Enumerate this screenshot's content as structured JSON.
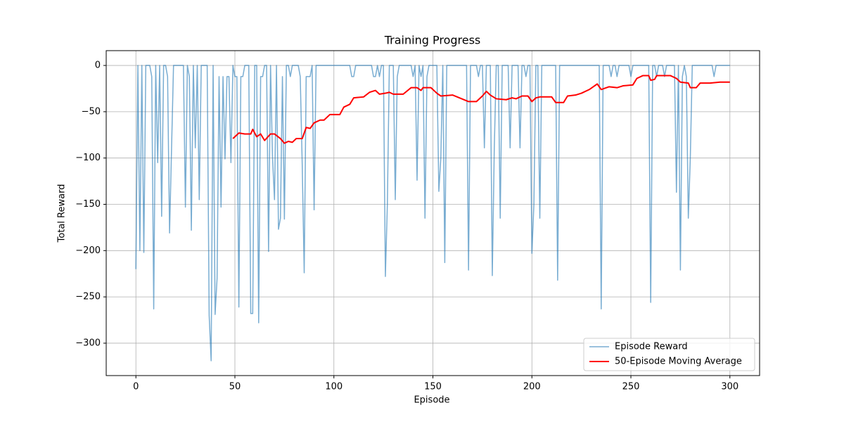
{
  "chart_data": {
    "type": "line",
    "title": "Training Progress",
    "x_label": "Episode",
    "y_label": "Total Reward",
    "x": [
      0,
      1,
      2,
      3,
      4,
      5,
      6,
      7,
      8,
      9,
      10,
      11,
      12,
      13,
      14,
      15,
      16,
      17,
      18,
      19,
      20,
      21,
      22,
      23,
      24,
      25,
      26,
      27,
      28,
      29,
      30,
      31,
      32,
      33,
      34,
      35,
      36,
      37,
      38,
      39,
      40,
      41,
      42,
      43,
      44,
      45,
      46,
      47,
      48,
      49,
      50,
      51,
      52,
      53,
      54,
      55,
      56,
      57,
      58,
      59,
      60,
      61,
      62,
      63,
      64,
      65,
      66,
      67,
      68,
      69,
      70,
      71,
      72,
      73,
      74,
      75,
      76,
      77,
      78,
      79,
      80,
      81,
      82,
      83,
      84,
      85,
      86,
      87,
      88,
      89,
      90,
      91,
      92,
      93,
      94,
      95,
      96,
      97,
      98,
      99,
      100,
      101,
      102,
      103,
      104,
      105,
      106,
      107,
      108,
      109,
      110,
      111,
      112,
      113,
      114,
      115,
      116,
      117,
      118,
      119,
      120,
      121,
      122,
      123,
      124,
      125,
      126,
      127,
      128,
      129,
      130,
      131,
      132,
      133,
      134,
      135,
      136,
      137,
      138,
      139,
      140,
      141,
      142,
      143,
      144,
      145,
      146,
      147,
      148,
      149,
      150,
      151,
      152,
      153,
      154,
      155,
      156,
      157,
      158,
      159,
      160,
      161,
      162,
      163,
      164,
      165,
      166,
      167,
      168,
      169,
      170,
      171,
      172,
      173,
      174,
      175,
      176,
      177,
      178,
      179,
      180,
      181,
      182,
      183,
      184,
      185,
      186,
      187,
      188,
      189,
      190,
      191,
      192,
      193,
      194,
      195,
      196,
      197,
      198,
      199,
      200,
      201,
      202,
      203,
      204,
      205,
      206,
      207,
      208,
      209,
      210,
      211,
      212,
      213,
      214,
      215,
      216,
      217,
      218,
      219,
      220,
      221,
      222,
      223,
      224,
      225,
      226,
      227,
      228,
      229,
      230,
      231,
      232,
      233,
      234,
      235,
      236,
      237,
      238,
      239,
      240,
      241,
      242,
      243,
      244,
      245,
      246,
      247,
      248,
      249,
      250,
      251,
      252,
      253,
      254,
      255,
      256,
      257,
      258,
      259,
      260,
      261,
      262,
      263,
      264,
      265,
      266,
      267,
      268,
      269,
      270,
      271,
      272,
      273,
      274,
      275,
      276,
      277,
      278,
      279,
      280,
      281,
      282,
      283,
      284,
      285,
      286,
      287,
      288,
      289,
      290,
      291,
      292,
      293,
      294,
      295,
      296,
      297,
      298,
      299,
      300
    ],
    "series": [
      {
        "name": "Episode Reward",
        "color": "#1f77b4",
        "alpha": 0.6,
        "linewidth": 1.5,
        "values": [
          -220,
          0,
          -200,
          0,
          -202,
          0,
          0,
          0,
          -12,
          -263,
          0,
          -105,
          0,
          -163,
          0,
          0,
          -12,
          -181,
          -90,
          0,
          0,
          0,
          0,
          0,
          0,
          -153,
          0,
          -12,
          -178,
          0,
          -89,
          0,
          -145,
          0,
          0,
          0,
          0,
          -270,
          -319,
          0,
          -269,
          -230,
          -12,
          -153,
          -12,
          -101,
          -12,
          -12,
          -105,
          0,
          -12,
          -12,
          -261,
          -12,
          -12,
          0,
          0,
          0,
          -268,
          -268,
          0,
          0,
          -278,
          -12,
          -12,
          0,
          0,
          -201,
          0,
          -100,
          -145,
          0,
          -177,
          -165,
          -12,
          -166,
          0,
          0,
          -12,
          0,
          0,
          0,
          0,
          -12,
          -107,
          -224,
          -12,
          -12,
          -12,
          0,
          -156,
          0,
          0,
          0,
          0,
          0,
          0,
          0,
          0,
          0,
          0,
          0,
          0,
          0,
          0,
          0,
          0,
          0,
          0,
          -12,
          -12,
          0,
          0,
          0,
          0,
          0,
          0,
          0,
          0,
          0,
          -12,
          -12,
          0,
          -12,
          0,
          0,
          -228,
          -150,
          0,
          0,
          0,
          -145,
          -12,
          0,
          0,
          0,
          0,
          0,
          0,
          0,
          -12,
          0,
          -124,
          0,
          -12,
          0,
          -165,
          -12,
          0,
          0,
          0,
          0,
          0,
          -136,
          -100,
          0,
          -213,
          0,
          0,
          0,
          0,
          0,
          0,
          0,
          0,
          0,
          0,
          0,
          -221,
          0,
          0,
          0,
          0,
          -12,
          0,
          0,
          -89,
          0,
          0,
          0,
          -227,
          -90,
          0,
          0,
          -165,
          0,
          0,
          0,
          0,
          -89,
          0,
          0,
          0,
          0,
          -89,
          0,
          0,
          -12,
          0,
          0,
          -203,
          -150,
          0,
          0,
          -165,
          0,
          0,
          0,
          0,
          0,
          0,
          0,
          0,
          -232,
          0,
          0,
          0,
          0,
          0,
          0,
          0,
          0,
          0,
          0,
          0,
          0,
          0,
          0,
          0,
          0,
          0,
          0,
          0,
          0,
          0,
          -263,
          0,
          0,
          0,
          0,
          -12,
          0,
          0,
          -12,
          0,
          0,
          0,
          0,
          0,
          0,
          -12,
          0,
          0,
          0,
          0,
          0,
          0,
          0,
          0,
          0,
          -256,
          0,
          0,
          -12,
          0,
          0,
          0,
          -12,
          0,
          0,
          0,
          0,
          0,
          -137,
          0,
          -221,
          -12,
          0,
          -12,
          -165,
          -100,
          0,
          0,
          0,
          0,
          0,
          0,
          0,
          0,
          0,
          0,
          0,
          -12,
          0,
          0,
          0,
          0,
          0,
          0,
          0,
          0
        ]
      },
      {
        "name": "50-Episode Moving Average",
        "color": "red",
        "alpha": 1,
        "linewidth": 2,
        "x": [
          49,
          52,
          55,
          58,
          59,
          61,
          63,
          65,
          68,
          70,
          73,
          75,
          77,
          79,
          81,
          84,
          86,
          88,
          90,
          93,
          95,
          98,
          103,
          105,
          108,
          110,
          115,
          118,
          121,
          123,
          126,
          128,
          130,
          135,
          139,
          142,
          144,
          145,
          149,
          152,
          154,
          160,
          168,
          172,
          175,
          177,
          179,
          182,
          187,
          190,
          192,
          195,
          198,
          200,
          202,
          204,
          210,
          212,
          216,
          218,
          222,
          225,
          229,
          233,
          235,
          239,
          243,
          246,
          251,
          253,
          256,
          259,
          260,
          262,
          263,
          270,
          273,
          275,
          279,
          280,
          283,
          285,
          290,
          295,
          300
        ],
        "values": [
          -79,
          -73,
          -74,
          -74,
          -69,
          -77,
          -74,
          -81,
          -74,
          -74,
          -79,
          -84,
          -82,
          -83,
          -79,
          -79,
          -67,
          -68,
          -62,
          -59,
          -59,
          -53,
          -53,
          -45,
          -42,
          -35,
          -34,
          -29,
          -27,
          -31,
          -30,
          -29,
          -31,
          -31,
          -24,
          -24,
          -27,
          -24,
          -24,
          -30,
          -33,
          -32,
          -39,
          -39,
          -33,
          -28,
          -32,
          -36,
          -37,
          -35,
          -36,
          -33,
          -33,
          -39,
          -35,
          -34,
          -34,
          -40,
          -40,
          -33,
          -32,
          -30,
          -26,
          -20,
          -26,
          -23,
          -24,
          -22,
          -21,
          -14,
          -11,
          -11,
          -16,
          -15,
          -11,
          -11,
          -14,
          -18,
          -19,
          -24,
          -24,
          -19,
          -19,
          -18,
          -18
        ]
      }
    ],
    "xlim": [
      -15,
      315
    ],
    "ylim": [
      -335,
      16
    ],
    "xticks": [
      0,
      50,
      100,
      150,
      200,
      250,
      300
    ],
    "yticks": [
      0,
      {
        "value": -50,
        "label": "−50"
      },
      {
        "value": -100,
        "label": "−100"
      },
      {
        "value": -150,
        "label": "−150"
      },
      {
        "value": -200,
        "label": "−200"
      },
      {
        "value": -250,
        "label": "−250"
      },
      {
        "value": -300,
        "label": "−300"
      }
    ],
    "grid": true,
    "legend": "lower right"
  }
}
